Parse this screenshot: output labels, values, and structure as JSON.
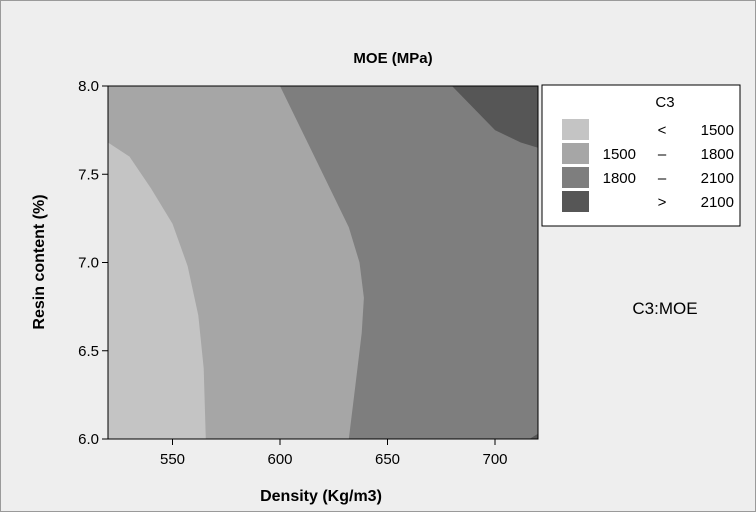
{
  "chart_data": {
    "type": "contour",
    "title": "MOE (MPa)",
    "xlabel": "Density (Kg/m3)",
    "ylabel": "Resin content (%)",
    "xlim": [
      520,
      720
    ],
    "ylim": [
      6.0,
      8.0
    ],
    "x_ticks": [
      550,
      600,
      650,
      700
    ],
    "x_tick_labels": [
      "550",
      "600",
      "650",
      "700"
    ],
    "y_ticks": [
      6.0,
      6.5,
      7.0,
      7.5,
      8.0
    ],
    "y_tick_labels": [
      "6.0",
      "6.5",
      "7.0",
      "7.5",
      "8.0"
    ],
    "legend": {
      "title": "C3",
      "placement": "right",
      "entries": [
        {
          "op": "<",
          "low": "",
          "high": "1500",
          "color": "#c4c4c4"
        },
        {
          "op": "–",
          "low": "1500",
          "high": "1800",
          "color": "#a6a6a6"
        },
        {
          "op": "–",
          "low": "1800",
          "high": "2100",
          "color": "#7e7e7e"
        },
        {
          "op": ">",
          "low": "",
          "high": "2100",
          "color": "#565656"
        }
      ]
    },
    "annotation": "C3:MOE",
    "contour_lines": [
      {
        "level": 1500,
        "points": [
          [
            520,
            7.68
          ],
          [
            530,
            7.6
          ],
          [
            540,
            7.42
          ],
          [
            550,
            7.22
          ],
          [
            557,
            6.98
          ],
          [
            562,
            6.7
          ],
          [
            564.5,
            6.4
          ],
          [
            565.5,
            6.0
          ]
        ]
      },
      {
        "level": 1800,
        "points": [
          [
            600,
            8.0
          ],
          [
            612,
            7.7
          ],
          [
            624,
            7.4
          ],
          [
            632,
            7.2
          ],
          [
            637,
            7.0
          ],
          [
            639,
            6.8
          ],
          [
            638,
            6.6
          ],
          [
            635,
            6.3
          ],
          [
            632,
            6.0
          ]
        ]
      },
      {
        "level": 2100,
        "points": [
          [
            680,
            8.0
          ],
          [
            688,
            7.9
          ],
          [
            700,
            7.75
          ],
          [
            712,
            7.68
          ],
          [
            720,
            7.65
          ]
        ]
      },
      {
        "level": 2100,
        "points": [
          [
            716,
            6.0
          ],
          [
            720,
            6.03
          ]
        ]
      }
    ]
  }
}
